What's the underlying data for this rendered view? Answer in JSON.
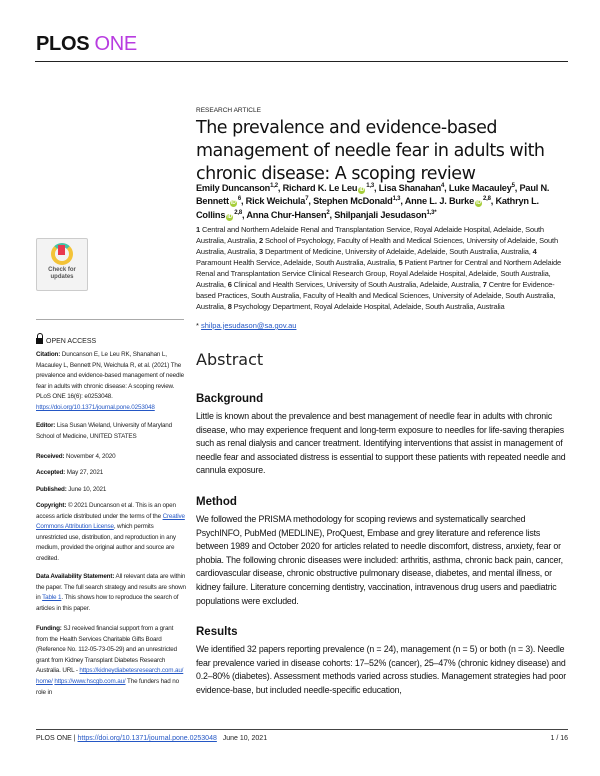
{
  "journal": {
    "name_a": "PLOS",
    "name_b": "ONE",
    "color_b": "#b83ce0"
  },
  "article_type": "RESEARCH ARTICLE",
  "title": "The prevalence and evidence-based management of needle fear in adults with chronic disease: A scoping review",
  "authors": [
    {
      "name": "Emily Duncanson",
      "sup": "1,2",
      "orcid": false
    },
    {
      "name": "Richard K. Le Leu",
      "sup": "1,3",
      "orcid": true
    },
    {
      "name": "Lisa Shanahan",
      "sup": "4",
      "orcid": false
    },
    {
      "name": "Luke Macauley",
      "sup": "5",
      "orcid": false
    },
    {
      "name": "Paul N. Bennett",
      "sup": "6",
      "orcid": true
    },
    {
      "name": "Rick Weichula",
      "sup": "7",
      "orcid": false
    },
    {
      "name": "Stephen McDonald",
      "sup": "1,3",
      "orcid": false
    },
    {
      "name": "Anne L. J. Burke",
      "sup": "2,8",
      "orcid": true
    },
    {
      "name": "Kathryn L. Collins",
      "sup": "2,8",
      "orcid": true
    },
    {
      "name": "Anna Chur-Hansen",
      "sup": "2",
      "orcid": false
    },
    {
      "name": "Shilpanjali Jesudason",
      "sup": "1,3*",
      "orcid": false
    }
  ],
  "affiliations": [
    {
      "num": "1",
      "text": "Central and Northern Adelaide Renal and Transplantation Service, Royal Adelaide Hospital, Adelaide, South Australia, Australia,"
    },
    {
      "num": "2",
      "text": "School of Psychology, Faculty of Health and Medical Sciences, University of Adelaide, South Australia, Australia,"
    },
    {
      "num": "3",
      "text": "Department of Medicine, University of Adelaide, Adelaide, South Australia, Australia,"
    },
    {
      "num": "4",
      "text": "Paramount Health Service, Adelaide, South Australia, Australia,"
    },
    {
      "num": "5",
      "text": "Patient Partner for Central and Northern Adelaide Renal and Transplantation Service Clinical Research Group, Royal Adelaide Hospital, Adelaide, South Australia, Australia,"
    },
    {
      "num": "6",
      "text": "Clinical and Health Services, University of South Australia, Adelaide, Australia,"
    },
    {
      "num": "7",
      "text": "Centre for Evidence-based Practices, South Australia, Faculty of Health and Medical Sciences, University of Adelaide, South Australia, Australia,"
    },
    {
      "num": "8",
      "text": "Psychology Department, Royal Adelaide Hospital, Adelaide, South Australia, Australia"
    }
  ],
  "email": "shilpa.jesudason@sa.gov.au",
  "abstract": {
    "heading": "Abstract",
    "sections": [
      {
        "heading": "Background",
        "text": "Little is known about the prevalence and best management of needle fear in adults with chronic disease, who may experience frequent and long-term exposure to needles for life-saving therapies such as renal dialysis and cancer treatment. Identifying interventions that assist in management of needle fear and associated distress is essential to support these patients with repeated needle and cannula exposure."
      },
      {
        "heading": "Method",
        "text": "We followed the PRISMA methodology for scoping reviews and systematically searched PsychINFO, PubMed (MEDLINE), ProQuest, Embase and grey literature and reference lists between 1989 and October 2020 for articles related to needle discomfort, distress, anxiety, fear or phobia. The following chronic diseases were included: arthritis, asthma, chronic back pain, cancer, cardiovascular disease, chronic obstructive pulmonary disease, diabetes, and mental illness, or kidney failure. Literature concerning dentistry, vaccination, intravenous drug users and paediatric populations were excluded."
      },
      {
        "heading": "Results",
        "text": "We identified 32 papers reporting prevalence (n = 24), management (n = 5) or both (n = 3). Needle fear prevalence varied in disease cohorts: 17–52% (cancer), 25–47% (chronic kidney disease) and 0.2–80% (diabetes). Assessment methods varied across studies. Management strategies had poor evidence-base, but included needle-specific education,"
      }
    ]
  },
  "sidebar": {
    "badge": {
      "line1": "Check for",
      "line2": "updates"
    },
    "open_access": "OPEN ACCESS",
    "citation": {
      "label": "Citation:",
      "text": "Duncanson E, Le Leu RK, Shanahan L, Macauley L, Bennett PN, Weichula R, et al. (2021) The prevalence and evidence-based management of needle fear in adults with chronic disease: A scoping review. PLoS ONE 16(6): e0253048.",
      "link": "https://doi.org/10.1371/journal.pone.0253048"
    },
    "editor": {
      "label": "Editor:",
      "text": "Lisa Susan Wieland, University of Maryland School of Medicine, UNITED STATES"
    },
    "received": {
      "label": "Received:",
      "text": "November 4, 2020"
    },
    "accepted": {
      "label": "Accepted:",
      "text": "May 27, 2021"
    },
    "published": {
      "label": "Published:",
      "text": "June 10, 2021"
    },
    "copyright": {
      "label": "Copyright:",
      "before": "© 2021 Duncanson et al. This is an open access article distributed under the terms of the",
      "link": "Creative Commons Attribution License",
      "after": ", which permits unrestricted use, distribution, and reproduction in any medium, provided the original author and source are credited."
    },
    "data": {
      "label": "Data Availability Statement:",
      "before": "All relevant data are within the paper. The full search strategy and results are shown in",
      "link": "Table 1",
      "after": ". This shows how to reproduce the search of articles in this paper."
    },
    "funding": {
      "label": "Funding:",
      "before": "SJ received financial support from a grant from the Health Services Charitable Gifts Board (Reference No. 112-05-73-05-29) and an unrestricted grant from Kidney Transplant Diabetes Research Australia. URL -",
      "link1": "https://kidneydiabetesresearch.com.au/home/",
      "link2": "https://www.hscgb.com.au/",
      "after": "The funders had no role in"
    }
  },
  "footer": {
    "journal": "PLOS ONE",
    "sep": "|",
    "doi": "https://doi.org/10.1371/journal.pone.0253048",
    "date": "June 10, 2021",
    "page": "1 / 16"
  }
}
